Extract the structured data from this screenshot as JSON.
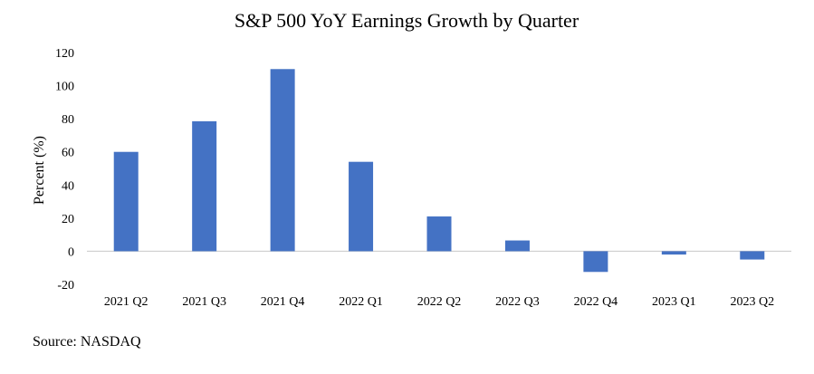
{
  "chart_data": {
    "type": "bar",
    "title": "S&P 500 YoY Earnings Growth by Quarter",
    "ylabel": "Percent (%)",
    "xlabel": "",
    "categories": [
      "2021 Q2",
      "2021 Q3",
      "2021 Q4",
      "2022 Q1",
      "2022 Q2",
      "2022 Q3",
      "2022 Q4",
      "2023 Q1",
      "2023 Q2"
    ],
    "values": [
      60,
      78.5,
      110,
      54,
      21,
      6.5,
      -12.5,
      -2,
      -5
    ],
    "ylim": [
      -20,
      120
    ],
    "yticks": [
      "-20",
      "0",
      "20",
      "40",
      "60",
      "80",
      "100",
      "120"
    ],
    "grid": false,
    "bar_color": "#4472C4",
    "source": "Source: NASDAQ"
  }
}
